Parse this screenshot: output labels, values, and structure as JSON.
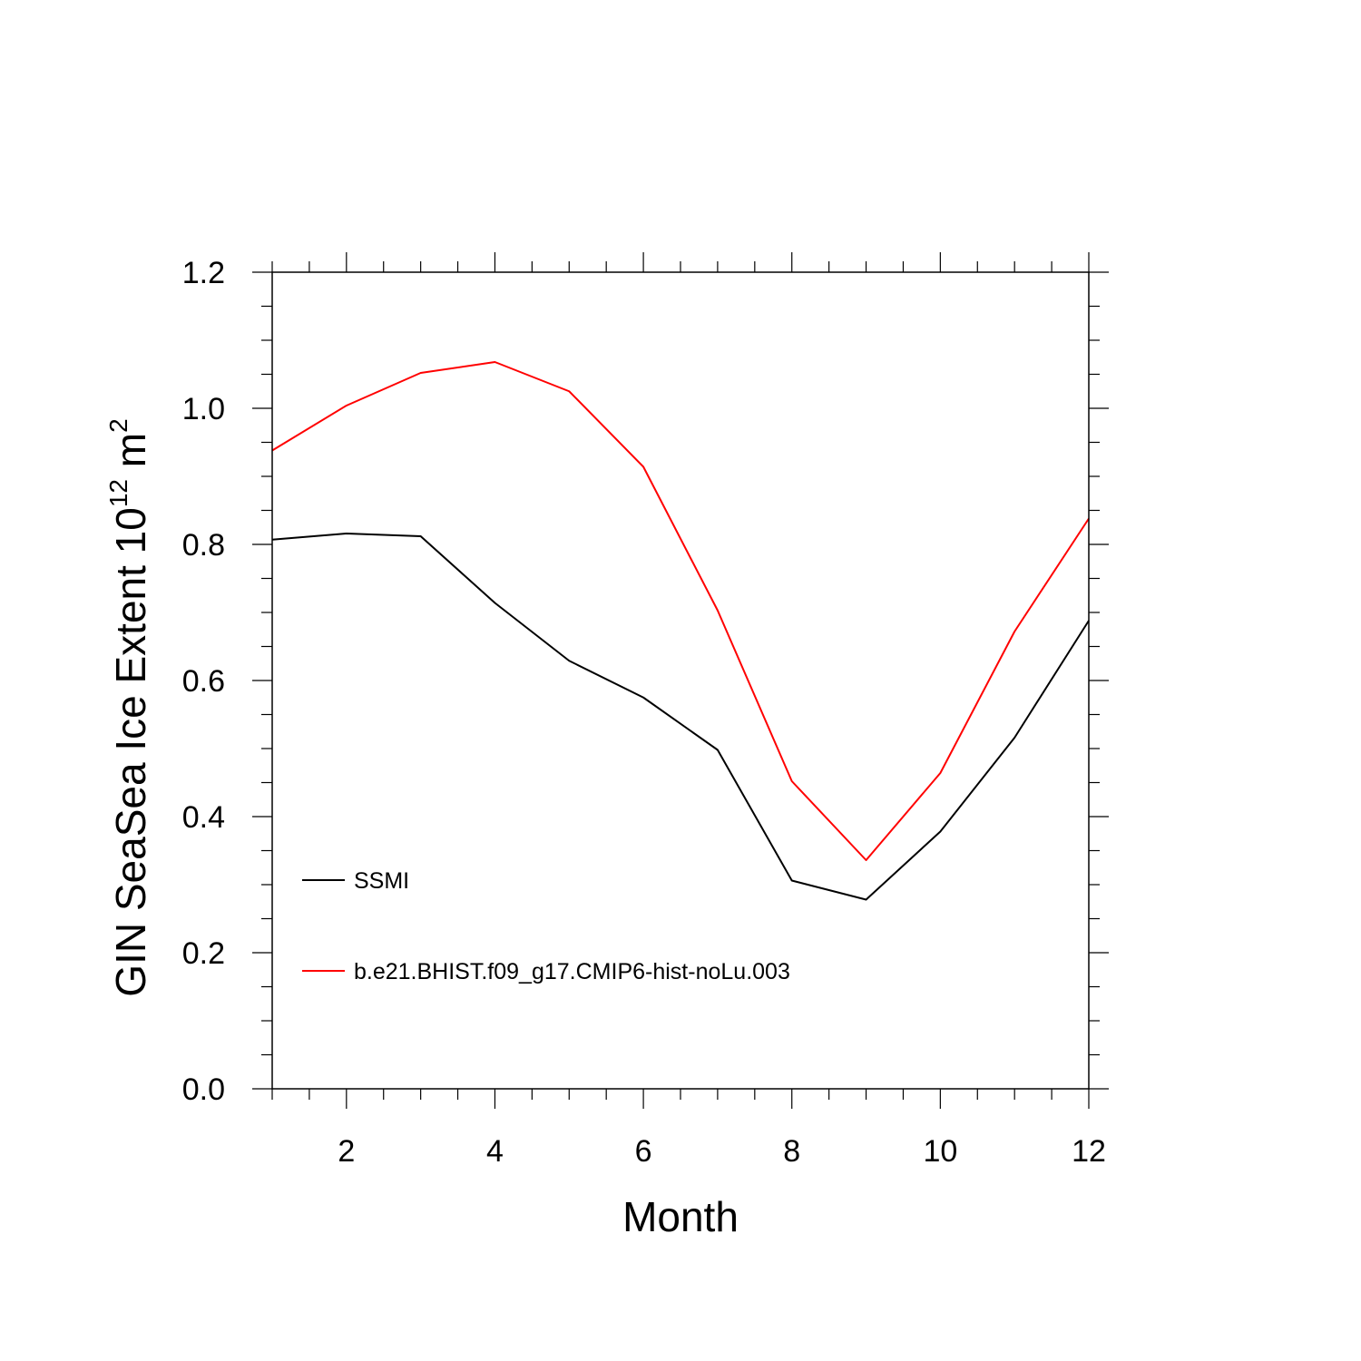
{
  "chart_data": {
    "type": "line",
    "xlabel": "Month",
    "ylabel": {
      "text": "GIN SeaSea Ice Extent 10",
      "superscript": "12",
      "unit": " m",
      "unit_superscript": "2"
    },
    "xlim": [
      1,
      12
    ],
    "ylim": [
      0.0,
      1.2
    ],
    "xticks": [
      2,
      4,
      6,
      8,
      10,
      12
    ],
    "xtick_labels": [
      "2",
      "4",
      "6",
      "8",
      "10",
      "12"
    ],
    "yticks": [
      0.0,
      0.2,
      0.4,
      0.6,
      0.8,
      1.0,
      1.2
    ],
    "ytick_labels": [
      "0.0",
      "0.2",
      "0.4",
      "0.6",
      "0.8",
      "1.0",
      "1.2"
    ],
    "grid": false,
    "legend_position": "lower-left",
    "x": [
      1,
      2,
      3,
      4,
      5,
      6,
      7,
      8,
      9,
      10,
      11,
      12
    ],
    "series": [
      {
        "name": "SSMI",
        "color": "#000000",
        "values": [
          0.807,
          0.816,
          0.812,
          0.714,
          0.629,
          0.575,
          0.498,
          0.306,
          0.278,
          0.378,
          0.516,
          0.688
        ]
      },
      {
        "name": "b.e21.BHIST.f09_g17.CMIP6-hist-noLu.003",
        "color": "#ff0000",
        "values": [
          0.938,
          1.004,
          1.052,
          1.068,
          1.025,
          0.914,
          0.703,
          0.452,
          0.336,
          0.464,
          0.672,
          0.838
        ]
      }
    ]
  }
}
